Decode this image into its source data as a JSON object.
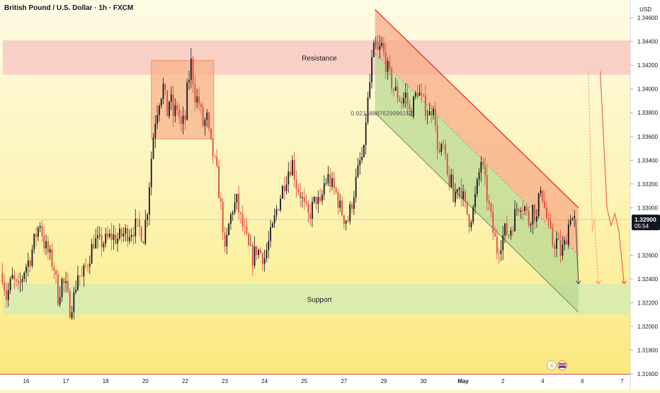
{
  "header": {
    "title": "British Pound / U.S. Dollar · 1h · FXCM",
    "currency": "USD"
  },
  "chart_data": {
    "type": "candlestick",
    "title": "British Pound / U.S. Dollar · 1h · FXCM",
    "xlabel": "",
    "ylabel": "USD",
    "ylim": [
      1.316,
      1.3475
    ],
    "grid": false,
    "x_ticks": [
      "16",
      "17",
      "18",
      "20",
      "22",
      "23",
      "24",
      "25",
      "27",
      "29",
      "30",
      "May",
      "2",
      "4",
      "6",
      "7"
    ],
    "x_tick_pos": [
      0,
      1,
      2,
      3,
      4,
      5,
      6,
      7,
      8,
      9,
      10,
      11,
      12,
      13,
      14,
      15
    ],
    "y_ticks": [
      "1.34600",
      "1.34400",
      "1.34200",
      "1.34000",
      "1.33800",
      "1.33600",
      "1.33400",
      "1.33200",
      "1.33000",
      "1.32600",
      "1.32400",
      "1.32200",
      "1.32000",
      "1.31800",
      "1.31600"
    ],
    "y_tick_values": [
      1.346,
      1.344,
      1.342,
      1.34,
      1.338,
      1.336,
      1.334,
      1.332,
      1.33,
      1.326,
      1.324,
      1.322,
      1.32,
      1.318,
      1.316
    ],
    "current_price": {
      "label": "1.32900",
      "value": 1.329,
      "countdown": "05:54"
    },
    "zones": [
      {
        "label": "Resistance",
        "y_low": 1.3412,
        "y_high": 1.3441,
        "color": "#f8c9c3"
      },
      {
        "label": "Support",
        "y_low": 1.321,
        "y_high": 1.3236,
        "color": "#d6ebb3"
      }
    ],
    "annotation": {
      "text": "0.921388876299961​52",
      "x": 8.95,
      "y": 1.338
    },
    "price_path": [
      [
        -0.6,
        1.3245
      ],
      [
        -0.5,
        1.3225
      ],
      [
        -0.35,
        1.324
      ],
      [
        -0.2,
        1.323
      ],
      [
        -0.05,
        1.3248
      ],
      [
        0.1,
        1.3258
      ],
      [
        0.25,
        1.3278
      ],
      [
        0.35,
        1.3288
      ],
      [
        0.45,
        1.327
      ],
      [
        0.55,
        1.3262
      ],
      [
        0.7,
        1.325
      ],
      [
        0.8,
        1.3225
      ],
      [
        0.9,
        1.3238
      ],
      [
        1.0,
        1.3232
      ],
      [
        1.1,
        1.3215
      ],
      [
        1.2,
        1.3225
      ],
      [
        1.3,
        1.3245
      ],
      [
        1.4,
        1.324
      ],
      [
        1.5,
        1.325
      ],
      [
        1.6,
        1.326
      ],
      [
        1.7,
        1.3272
      ],
      [
        1.85,
        1.327
      ],
      [
        2.0,
        1.3272
      ],
      [
        2.15,
        1.3276
      ],
      [
        2.3,
        1.3274
      ],
      [
        2.45,
        1.3278
      ],
      [
        2.6,
        1.328
      ],
      [
        2.75,
        1.3284
      ],
      [
        2.85,
        1.3282
      ],
      [
        2.95,
        1.3276
      ],
      [
        3.05,
        1.33
      ],
      [
        3.12,
        1.333
      ],
      [
        3.18,
        1.3355
      ],
      [
        3.25,
        1.3375
      ],
      [
        3.35,
        1.3392
      ],
      [
        3.45,
        1.3402
      ],
      [
        3.55,
        1.338
      ],
      [
        3.62,
        1.3395
      ],
      [
        3.7,
        1.3378
      ],
      [
        3.8,
        1.3385
      ],
      [
        3.9,
        1.3368
      ],
      [
        4.0,
        1.3375
      ],
      [
        4.05,
        1.3398
      ],
      [
        4.15,
        1.3422
      ],
      [
        4.25,
        1.3395
      ],
      [
        4.35,
        1.3388
      ],
      [
        4.45,
        1.337
      ],
      [
        4.55,
        1.3375
      ],
      [
        4.62,
        1.3355
      ],
      [
        4.7,
        1.3345
      ],
      [
        4.8,
        1.3328
      ],
      [
        4.9,
        1.33
      ],
      [
        4.95,
        1.3285
      ],
      [
        5.0,
        1.326
      ],
      [
        5.1,
        1.3285
      ],
      [
        5.2,
        1.33
      ],
      [
        5.3,
        1.3305
      ],
      [
        5.4,
        1.329
      ],
      [
        5.5,
        1.3278
      ],
      [
        5.6,
        1.3265
      ],
      [
        5.7,
        1.3258
      ],
      [
        5.8,
        1.3265
      ],
      [
        5.9,
        1.3262
      ],
      [
        6.0,
        1.3258
      ],
      [
        6.1,
        1.327
      ],
      [
        6.2,
        1.3282
      ],
      [
        6.3,
        1.3298
      ],
      [
        6.4,
        1.331
      ],
      [
        6.5,
        1.3322
      ],
      [
        6.6,
        1.3332
      ],
      [
        6.7,
        1.3338
      ],
      [
        6.8,
        1.332
      ],
      [
        6.9,
        1.3312
      ],
      [
        7.0,
        1.33
      ],
      [
        7.1,
        1.3292
      ],
      [
        7.2,
        1.33
      ],
      [
        7.3,
        1.3308
      ],
      [
        7.4,
        1.33
      ],
      [
        7.5,
        1.332
      ],
      [
        7.6,
        1.3325
      ],
      [
        7.7,
        1.3318
      ],
      [
        7.8,
        1.3312
      ],
      [
        7.9,
        1.33
      ],
      [
        8.0,
        1.3292
      ],
      [
        8.1,
        1.329
      ],
      [
        8.2,
        1.3305
      ],
      [
        8.3,
        1.3322
      ],
      [
        8.4,
        1.3338
      ],
      [
        8.5,
        1.3345
      ],
      [
        8.55,
        1.3375
      ],
      [
        8.62,
        1.3395
      ],
      [
        8.7,
        1.3422
      ],
      [
        8.78,
        1.3438
      ],
      [
        8.85,
        1.343
      ],
      [
        8.95,
        1.3436
      ],
      [
        9.05,
        1.3422
      ],
      [
        9.15,
        1.341
      ],
      [
        9.25,
        1.34
      ],
      [
        9.35,
        1.3395
      ],
      [
        9.45,
        1.339
      ],
      [
        9.55,
        1.3395
      ],
      [
        9.65,
        1.338
      ],
      [
        9.75,
        1.3388
      ],
      [
        9.85,
        1.34
      ],
      [
        9.95,
        1.339
      ],
      [
        10.05,
        1.3385
      ],
      [
        10.15,
        1.3378
      ],
      [
        10.25,
        1.339
      ],
      [
        10.3,
        1.3365
      ],
      [
        10.4,
        1.3345
      ],
      [
        10.5,
        1.335
      ],
      [
        10.6,
        1.3325
      ],
      [
        10.7,
        1.332
      ],
      [
        10.75,
        1.3305
      ],
      [
        10.85,
        1.332
      ],
      [
        10.95,
        1.3315
      ],
      [
        11.05,
        1.33
      ],
      [
        11.15,
        1.329
      ],
      [
        11.25,
        1.3298
      ],
      [
        11.35,
        1.3318
      ],
      [
        11.45,
        1.334
      ],
      [
        11.55,
        1.332
      ],
      [
        11.65,
        1.33
      ],
      [
        11.75,
        1.328
      ],
      [
        11.85,
        1.3265
      ],
      [
        11.95,
        1.3272
      ],
      [
        12.05,
        1.328
      ],
      [
        12.15,
        1.3278
      ],
      [
        12.25,
        1.3288
      ],
      [
        12.35,
        1.33
      ],
      [
        12.45,
        1.3305
      ],
      [
        12.55,
        1.33
      ],
      [
        12.65,
        1.3288
      ],
      [
        12.75,
        1.33
      ],
      [
        12.85,
        1.329
      ],
      [
        12.95,
        1.332
      ],
      [
        13.05,
        1.33
      ],
      [
        13.15,
        1.3282
      ],
      [
        13.25,
        1.327
      ],
      [
        13.35,
        1.3272
      ],
      [
        13.45,
        1.3262
      ],
      [
        13.55,
        1.3268
      ],
      [
        13.62,
        1.328
      ],
      [
        13.7,
        1.3295
      ],
      [
        13.78,
        1.3288
      ],
      [
        13.83,
        1.329
      ]
    ],
    "channel": {
      "upper": [
        [
          8.78,
          1.3467
        ],
        [
          13.9,
          1.33
        ]
      ],
      "mid": [
        [
          8.78,
          1.343
        ],
        [
          13.9,
          1.326
        ]
      ],
      "lower": [
        [
          8.78,
          1.338
        ],
        [
          13.9,
          1.3212
        ]
      ]
    },
    "consolidation_box": {
      "x0": 3.15,
      "x1": 4.72,
      "y_low": 1.3358,
      "y_high": 1.3424
    },
    "projections": [
      {
        "points": [
          [
            13.83,
            1.329
          ],
          [
            13.9,
            1.3236
          ]
        ],
        "style": "solid",
        "color": "#444444"
      },
      {
        "points": [
          [
            14.15,
            1.3415
          ],
          [
            14.25,
            1.328
          ],
          [
            14.3,
            1.329
          ],
          [
            14.4,
            1.3236
          ]
        ],
        "style": "dotted",
        "color": "#ff7b6b"
      },
      {
        "points": [
          [
            14.45,
            1.3415
          ],
          [
            14.62,
            1.33
          ],
          [
            14.72,
            1.3285
          ],
          [
            14.82,
            1.3295
          ],
          [
            14.92,
            1.328
          ],
          [
            15.05,
            1.3236
          ]
        ],
        "style": "solid",
        "color": "#f04a3a"
      }
    ]
  }
}
